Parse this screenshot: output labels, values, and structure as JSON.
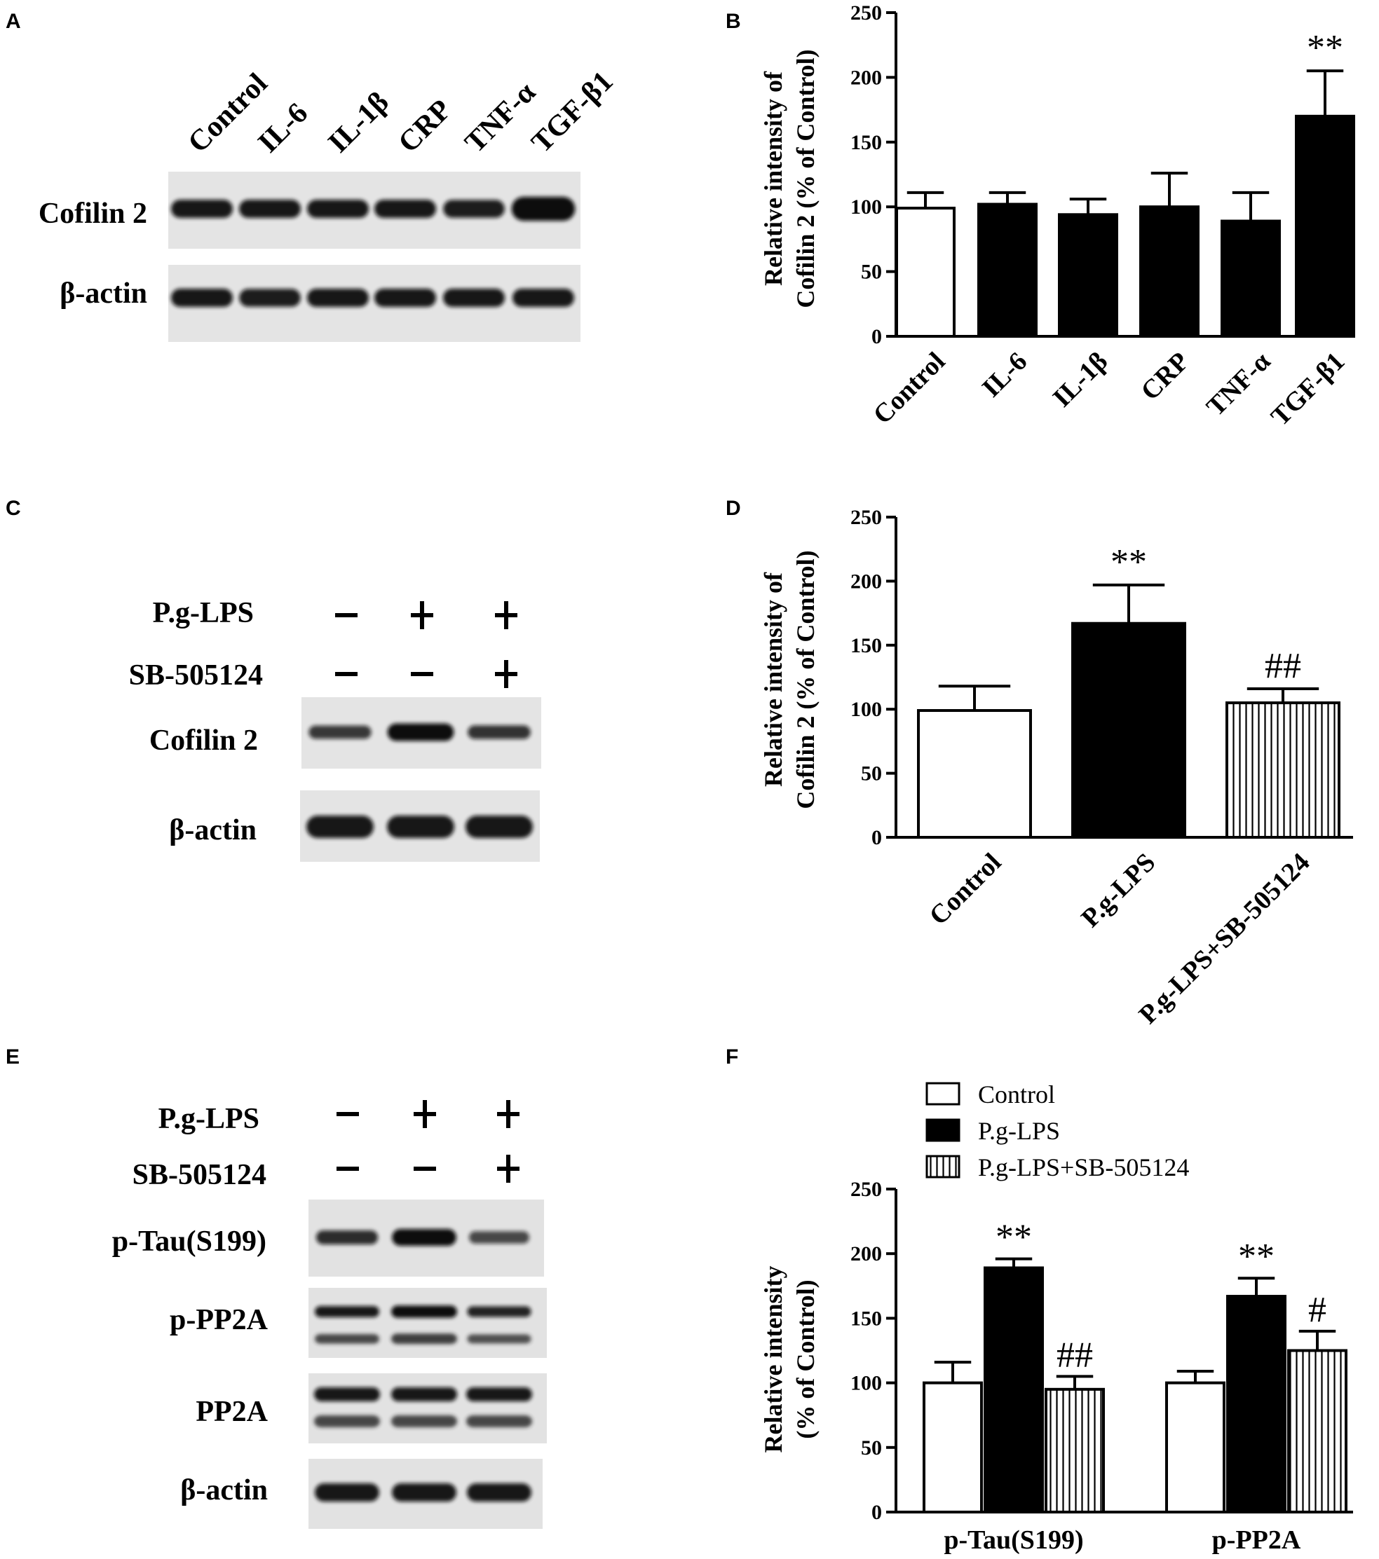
{
  "panels": {
    "A": "A",
    "B": "B",
    "C": "C",
    "D": "D",
    "E": "E",
    "F": "F"
  },
  "blot_A": {
    "lanes": [
      "Control",
      "IL-6",
      "IL-1β",
      "CRP",
      "TNF-α",
      "TGF-β1"
    ],
    "rows": [
      {
        "label": "Cofilin 2",
        "intensity": [
          1.0,
          1.0,
          1.0,
          1.0,
          0.95,
          1.7
        ]
      },
      {
        "label": "β-actin",
        "intensity": [
          1.0,
          0.95,
          1.0,
          1.0,
          1.0,
          1.0
        ]
      }
    ]
  },
  "blot_C": {
    "treatments": [
      {
        "label": "P.g-LPS",
        "signs": [
          "-",
          "+",
          "+"
        ]
      },
      {
        "label": "SB-505124",
        "signs": [
          "-",
          "-",
          "+"
        ]
      }
    ],
    "rows": [
      {
        "label": "Cofilin 2",
        "intensity": [
          0.7,
          1.3,
          0.75
        ]
      },
      {
        "label": "β-actin",
        "intensity": [
          1.0,
          1.0,
          1.0
        ]
      }
    ]
  },
  "blot_E": {
    "treatments": [
      {
        "label": "P.g-LPS",
        "signs": [
          "-",
          "+",
          "+"
        ]
      },
      {
        "label": "SB-505124",
        "signs": [
          "-",
          "-",
          "+"
        ]
      }
    ],
    "rows": [
      {
        "label": "p-Tau(S199)",
        "intensity": [
          0.8,
          1.2,
          0.55
        ]
      },
      {
        "label": "p-PP2A",
        "intensity": [
          1.0,
          1.2,
          0.9
        ]
      },
      {
        "label": "PP2A",
        "intensity": [
          1.0,
          1.0,
          1.0
        ]
      },
      {
        "label": "β-actin",
        "intensity": [
          1.0,
          1.0,
          1.0
        ]
      }
    ]
  },
  "chart_data": [
    {
      "panel": "B",
      "type": "bar",
      "categories": [
        "Control",
        "IL-6",
        "IL-1β",
        "CRP",
        "TNF-α",
        "TGF-β1"
      ],
      "values": [
        99,
        102,
        94,
        100,
        89,
        170
      ],
      "errors": [
        12,
        9,
        12,
        26,
        22,
        35
      ],
      "fills": [
        "open",
        "solid",
        "solid",
        "solid",
        "solid",
        "solid"
      ],
      "annotations": [
        "",
        "",
        "",
        "",
        "",
        "**"
      ],
      "ylabel": "Relative intensity of Cofilin 2 (% of Control)",
      "ylabel_lines": [
        "Relative intensity of",
        "Cofilin 2 (% of Control)"
      ],
      "ylim": [
        0,
        250
      ],
      "yticks": [
        0,
        50,
        100,
        150,
        200,
        250
      ]
    },
    {
      "panel": "D",
      "type": "bar",
      "categories": [
        "Control",
        "P.g-LPS",
        "P.g-LPS+SB-505124"
      ],
      "values": [
        99,
        167,
        105
      ],
      "errors": [
        19,
        30,
        11
      ],
      "fills": [
        "open",
        "solid",
        "hatched"
      ],
      "annotations": [
        "",
        "**",
        "##"
      ],
      "ylabel": "Relative intensity of Cofilin 2 (% of Control)",
      "ylabel_lines": [
        "Relative intensity of",
        "Cofilin 2 (% of Control)"
      ],
      "ylim": [
        0,
        250
      ],
      "yticks": [
        0,
        50,
        100,
        150,
        200,
        250
      ]
    },
    {
      "panel": "F",
      "type": "bar",
      "categories": [
        "p-Tau(S199)",
        "p-PP2A"
      ],
      "series": [
        {
          "name": "Control",
          "fill": "open",
          "values": [
            100,
            100
          ],
          "errors": [
            16,
            9
          ],
          "annotations": [
            "",
            ""
          ]
        },
        {
          "name": "P.g-LPS",
          "fill": "solid",
          "values": [
            189,
            167
          ],
          "errors": [
            7,
            14
          ],
          "annotations": [
            "**",
            "**"
          ]
        },
        {
          "name": "P.g-LPS+SB-505124",
          "fill": "hatched",
          "values": [
            95,
            125
          ],
          "errors": [
            10,
            15
          ],
          "annotations": [
            "##",
            "#"
          ]
        }
      ],
      "ylabel": "Relative intensity (% of Control)",
      "ylabel_lines": [
        "Relative intensity",
        "(% of Control)"
      ],
      "ylim": [
        0,
        250
      ],
      "yticks": [
        0,
        50,
        100,
        150,
        200,
        250
      ],
      "legend": "top"
    }
  ]
}
